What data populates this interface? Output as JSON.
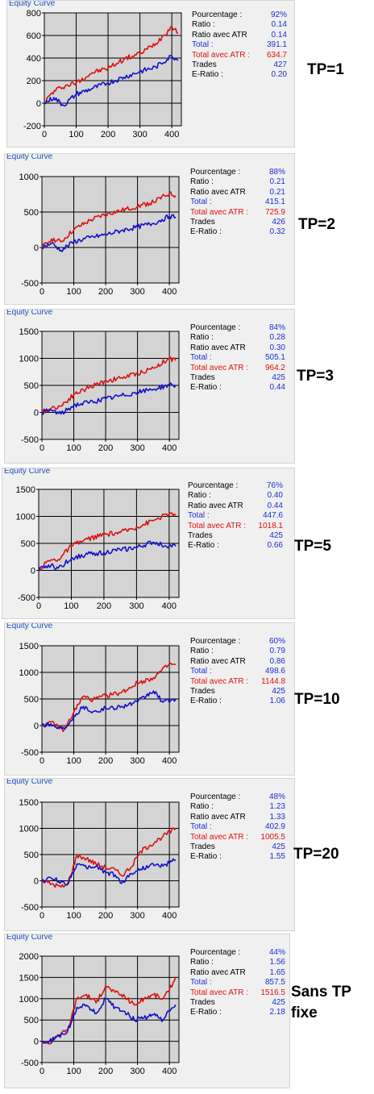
{
  "chart_data": [
    {
      "type": "line",
      "title": "Equity Curve",
      "annotation": "TP=1",
      "xlim": [
        0,
        430
      ],
      "ylim": [
        -200,
        800
      ],
      "x_ticks": [
        0,
        100,
        200,
        300,
        400
      ],
      "y_ticks": [
        -200,
        0,
        200,
        400,
        600,
        800
      ],
      "grid": true,
      "series": [
        {
          "color": "#dd1111",
          "points": [
            [
              0,
              0
            ],
            [
              20,
              80
            ],
            [
              50,
              140
            ],
            [
              100,
              180
            ],
            [
              150,
              270
            ],
            [
              200,
              310
            ],
            [
              250,
              390
            ],
            [
              300,
              440
            ],
            [
              350,
              530
            ],
            [
              400,
              680
            ],
            [
              420,
              620
            ]
          ]
        },
        {
          "color": "#1111cc",
          "points": [
            [
              0,
              0
            ],
            [
              30,
              50
            ],
            [
              60,
              -20
            ],
            [
              100,
              80
            ],
            [
              150,
              130
            ],
            [
              200,
              180
            ],
            [
              250,
              230
            ],
            [
              300,
              280
            ],
            [
              350,
              320
            ],
            [
              400,
              420
            ],
            [
              420,
              380
            ]
          ]
        }
      ],
      "stats": [
        {
          "label": "Pourcentage :",
          "value": "92%"
        },
        {
          "label": "Ratio :",
          "value": "0.14"
        },
        {
          "label": "Ratio avec ATR",
          "value": "0.14"
        },
        {
          "label": "Total :",
          "value": "391.1"
        },
        {
          "label": "Total avec ATR :",
          "value": "634.7"
        },
        {
          "label": "Trades",
          "value": "427"
        },
        {
          "label": "E-Ratio :",
          "value": "0.20"
        }
      ]
    },
    {
      "type": "line",
      "title": "Equity Curve",
      "annotation": "TP=2",
      "xlim": [
        0,
        430
      ],
      "ylim": [
        -500,
        1000
      ],
      "x_ticks": [
        0,
        100,
        200,
        300,
        400
      ],
      "y_ticks": [
        -500,
        0,
        500,
        1000
      ],
      "grid": true,
      "series": [
        {
          "color": "#dd1111",
          "points": [
            [
              0,
              0
            ],
            [
              30,
              120
            ],
            [
              60,
              80
            ],
            [
              100,
              250
            ],
            [
              150,
              380
            ],
            [
              200,
              470
            ],
            [
              250,
              520
            ],
            [
              300,
              580
            ],
            [
              350,
              640
            ],
            [
              400,
              760
            ],
            [
              420,
              730
            ]
          ]
        },
        {
          "color": "#1111cc",
          "points": [
            [
              0,
              0
            ],
            [
              30,
              60
            ],
            [
              60,
              -40
            ],
            [
              100,
              80
            ],
            [
              150,
              140
            ],
            [
              200,
              180
            ],
            [
              250,
              240
            ],
            [
              300,
              290
            ],
            [
              350,
              340
            ],
            [
              400,
              440
            ],
            [
              420,
              430
            ]
          ]
        }
      ],
      "stats": [
        {
          "label": "Pourcentage :",
          "value": "88%"
        },
        {
          "label": "Ratio :",
          "value": "0.21"
        },
        {
          "label": "Ratio avec ATR",
          "value": "0.21"
        },
        {
          "label": "Total :",
          "value": "415.1"
        },
        {
          "label": "Total avec ATR :",
          "value": "725.9"
        },
        {
          "label": "Trades",
          "value": "426"
        },
        {
          "label": "E-Ratio :",
          "value": "0.32"
        }
      ]
    },
    {
      "type": "line",
      "title": "Equity Curve",
      "annotation": "TP=3",
      "xlim": [
        0,
        430
      ],
      "ylim": [
        -500,
        1500
      ],
      "x_ticks": [
        0,
        100,
        200,
        300,
        400
      ],
      "y_ticks": [
        -500,
        0,
        500,
        1000,
        1500
      ],
      "grid": true,
      "series": [
        {
          "color": "#dd1111",
          "points": [
            [
              0,
              0
            ],
            [
              30,
              80
            ],
            [
              60,
              120
            ],
            [
              100,
              330
            ],
            [
              150,
              470
            ],
            [
              200,
              580
            ],
            [
              250,
              640
            ],
            [
              300,
              720
            ],
            [
              350,
              820
            ],
            [
              400,
              1000
            ],
            [
              420,
              960
            ]
          ]
        },
        {
          "color": "#1111cc",
          "points": [
            [
              0,
              0
            ],
            [
              30,
              40
            ],
            [
              60,
              -30
            ],
            [
              100,
              130
            ],
            [
              150,
              190
            ],
            [
              200,
              250
            ],
            [
              250,
              310
            ],
            [
              300,
              370
            ],
            [
              350,
              430
            ],
            [
              400,
              510
            ],
            [
              420,
              505
            ]
          ]
        }
      ],
      "stats": [
        {
          "label": "Pourcentage :",
          "value": "84%"
        },
        {
          "label": "Ratio :",
          "value": "0.28"
        },
        {
          "label": "Ratio avec ATR",
          "value": "0.30"
        },
        {
          "label": "Total :",
          "value": "505.1"
        },
        {
          "label": "Total avec ATR :",
          "value": "964.2"
        },
        {
          "label": "Trades",
          "value": "425"
        },
        {
          "label": "E-Ratio :",
          "value": "0.44"
        }
      ]
    },
    {
      "type": "line",
      "title": "Equity Curve",
      "annotation": "TP=5",
      "xlim": [
        0,
        430
      ],
      "ylim": [
        -500,
        1500
      ],
      "x_ticks": [
        0,
        100,
        200,
        300,
        400
      ],
      "y_ticks": [
        -500,
        0,
        500,
        1000,
        1500
      ],
      "grid": true,
      "series": [
        {
          "color": "#dd1111",
          "points": [
            [
              0,
              0
            ],
            [
              30,
              180
            ],
            [
              60,
              200
            ],
            [
              100,
              450
            ],
            [
              150,
              580
            ],
            [
              200,
              660
            ],
            [
              250,
              700
            ],
            [
              300,
              800
            ],
            [
              350,
              920
            ],
            [
              400,
              1050
            ],
            [
              420,
              1018
            ]
          ]
        },
        {
          "color": "#1111cc",
          "points": [
            [
              0,
              0
            ],
            [
              30,
              100
            ],
            [
              60,
              40
            ],
            [
              100,
              220
            ],
            [
              150,
              300
            ],
            [
              200,
              330
            ],
            [
              250,
              380
            ],
            [
              300,
              420
            ],
            [
              350,
              520
            ],
            [
              400,
              450
            ],
            [
              420,
              448
            ]
          ]
        }
      ],
      "stats": [
        {
          "label": "Pourcentage :",
          "value": "76%"
        },
        {
          "label": "Ratio :",
          "value": "0.40"
        },
        {
          "label": "Ratio avec ATR",
          "value": "0.44"
        },
        {
          "label": "Total :",
          "value": "447.6"
        },
        {
          "label": "Total avec ATR :",
          "value": "1018.1"
        },
        {
          "label": "Trades",
          "value": "425"
        },
        {
          "label": "E-Ratio :",
          "value": "0.66"
        }
      ]
    },
    {
      "type": "line",
      "title": "Equity Curve",
      "annotation": "TP=10",
      "xlim": [
        0,
        430
      ],
      "ylim": [
        -500,
        1500
      ],
      "x_ticks": [
        0,
        100,
        200,
        300,
        400
      ],
      "y_ticks": [
        -500,
        0,
        500,
        1000,
        1500
      ],
      "grid": true,
      "series": [
        {
          "color": "#dd1111",
          "points": [
            [
              0,
              0
            ],
            [
              20,
              60
            ],
            [
              40,
              20
            ],
            [
              70,
              -80
            ],
            [
              100,
              250
            ],
            [
              130,
              550
            ],
            [
              160,
              480
            ],
            [
              200,
              560
            ],
            [
              250,
              620
            ],
            [
              300,
              800
            ],
            [
              350,
              900
            ],
            [
              400,
              1150
            ],
            [
              420,
              1145
            ]
          ]
        },
        {
          "color": "#1111cc",
          "points": [
            [
              0,
              0
            ],
            [
              20,
              40
            ],
            [
              40,
              -20
            ],
            [
              70,
              -60
            ],
            [
              100,
              180
            ],
            [
              130,
              360
            ],
            [
              160,
              260
            ],
            [
              200,
              320
            ],
            [
              250,
              360
            ],
            [
              300,
              440
            ],
            [
              350,
              650
            ],
            [
              380,
              440
            ],
            [
              420,
              500
            ]
          ]
        }
      ],
      "stats": [
        {
          "label": "Pourcentage :",
          "value": "60%"
        },
        {
          "label": "Ratio :",
          "value": "0.79"
        },
        {
          "label": "Ratio avec ATR",
          "value": "0.86"
        },
        {
          "label": "Total :",
          "value": "498.6"
        },
        {
          "label": "Total avec ATR :",
          "value": "1144.8"
        },
        {
          "label": "Trades",
          "value": "425"
        },
        {
          "label": "E-Ratio :",
          "value": "1.06"
        }
      ]
    },
    {
      "type": "line",
      "title": "Equity Curve",
      "annotation": "TP=20",
      "xlim": [
        0,
        430
      ],
      "ylim": [
        -500,
        1500
      ],
      "x_ticks": [
        0,
        100,
        200,
        300,
        400
      ],
      "y_ticks": [
        -500,
        0,
        500,
        1000,
        1500
      ],
      "grid": true,
      "series": [
        {
          "color": "#dd1111",
          "points": [
            [
              0,
              0
            ],
            [
              30,
              -60
            ],
            [
              60,
              -120
            ],
            [
              80,
              -80
            ],
            [
              110,
              480
            ],
            [
              140,
              420
            ],
            [
              170,
              320
            ],
            [
              200,
              250
            ],
            [
              230,
              210
            ],
            [
              250,
              100
            ],
            [
              280,
              260
            ],
            [
              310,
              560
            ],
            [
              340,
              680
            ],
            [
              380,
              850
            ],
            [
              420,
              1000
            ]
          ]
        },
        {
          "color": "#1111cc",
          "points": [
            [
              0,
              0
            ],
            [
              30,
              50
            ],
            [
              60,
              -20
            ],
            [
              80,
              -60
            ],
            [
              110,
              320
            ],
            [
              140,
              240
            ],
            [
              170,
              280
            ],
            [
              200,
              160
            ],
            [
              230,
              110
            ],
            [
              250,
              -50
            ],
            [
              280,
              140
            ],
            [
              310,
              220
            ],
            [
              340,
              300
            ],
            [
              380,
              280
            ],
            [
              420,
              400
            ]
          ]
        }
      ],
      "stats": [
        {
          "label": "Pourcentage :",
          "value": "48%"
        },
        {
          "label": "Ratio :",
          "value": "1.23"
        },
        {
          "label": "Ratio avec ATR",
          "value": "1.33"
        },
        {
          "label": "Total :",
          "value": "402.9"
        },
        {
          "label": "Total avec ATR :",
          "value": "1005.5"
        },
        {
          "label": "Trades",
          "value": "425"
        },
        {
          "label": "E-Ratio :",
          "value": "1.55"
        }
      ]
    },
    {
      "type": "line",
      "title": "Equity Curve",
      "annotation": "Sans TP fixe",
      "xlim": [
        0,
        430
      ],
      "ylim": [
        -500,
        2000
      ],
      "x_ticks": [
        0,
        100,
        200,
        300,
        400
      ],
      "y_ticks": [
        -500,
        0,
        500,
        1000,
        1500,
        2000
      ],
      "grid": true,
      "series": [
        {
          "color": "#dd1111",
          "points": [
            [
              0,
              0
            ],
            [
              20,
              -60
            ],
            [
              50,
              150
            ],
            [
              80,
              250
            ],
            [
              110,
              1000
            ],
            [
              140,
              1100
            ],
            [
              170,
              900
            ],
            [
              200,
              1300
            ],
            [
              230,
              1150
            ],
            [
              260,
              1050
            ],
            [
              290,
              850
            ],
            [
              320,
              1000
            ],
            [
              350,
              1100
            ],
            [
              380,
              1000
            ],
            [
              400,
              1200
            ],
            [
              420,
              1517
            ]
          ]
        },
        {
          "color": "#1111cc",
          "points": [
            [
              0,
              0
            ],
            [
              20,
              -30
            ],
            [
              50,
              120
            ],
            [
              80,
              220
            ],
            [
              110,
              800
            ],
            [
              140,
              850
            ],
            [
              170,
              650
            ],
            [
              200,
              1000
            ],
            [
              230,
              800
            ],
            [
              260,
              700
            ],
            [
              290,
              500
            ],
            [
              320,
              550
            ],
            [
              350,
              620
            ],
            [
              380,
              500
            ],
            [
              400,
              700
            ],
            [
              420,
              858
            ]
          ]
        }
      ],
      "stats": [
        {
          "label": "Pourcentage :",
          "value": "44%"
        },
        {
          "label": "Ratio :",
          "value": "1.56"
        },
        {
          "label": "Ratio avec ATR",
          "value": "1.65"
        },
        {
          "label": "Total :",
          "value": "857.5"
        },
        {
          "label": "Total avec ATR :",
          "value": "1516.5"
        },
        {
          "label": "Trades",
          "value": "425"
        },
        {
          "label": "E-Ratio :",
          "value": "2.18"
        }
      ]
    }
  ]
}
